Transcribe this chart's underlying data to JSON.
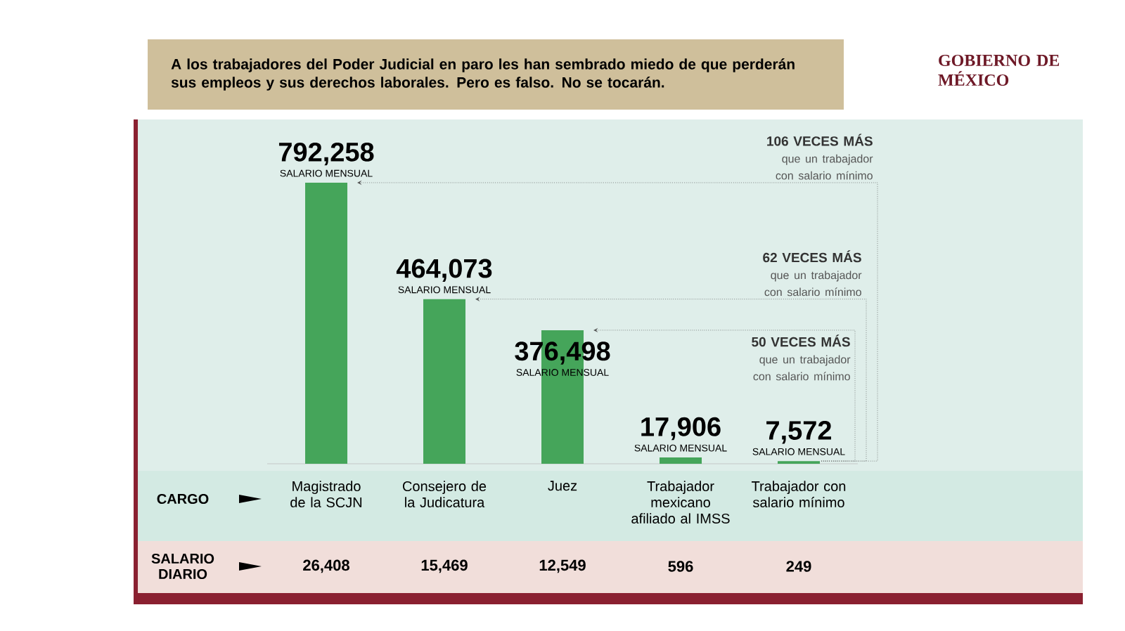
{
  "chart_data": {
    "type": "bar",
    "title": "A los trabajadores del Poder Judicial en paro les han sembrado miedo de que perderán sus empleos y sus derechos laborales. Pero es falso. No se tocarán.",
    "categories": [
      "Magistrado de la SCJN",
      "Consejero de la Judicatura",
      "Juez",
      "Trabajador mexicano afiliado al IMSS",
      "Trabajador con salario mínimo"
    ],
    "values": [
      792258,
      464073,
      376498,
      17906,
      7572
    ],
    "color": "#45a55a",
    "value_labels": [
      "792,258",
      "464,073",
      "376,498",
      "17,906",
      "7,572"
    ],
    "annotations": [
      "106 VECES MÁS",
      "que un trabajador con salario mínimo",
      "62 VECES MÁS",
      "que un trabajador con salario mínimo",
      "50 VECES MÁS",
      "que un trabajador con salario mínimo",
      "SALARIO MENSUAL",
      "SALARIO MENSUAL",
      "SALARIO MENSUAL",
      "SALARIO MENSUAL",
      "SALARIO MENSUAL",
      "CARGO",
      "SALARIO DIARIO",
      "26,408",
      "15,469",
      "12,549",
      "596",
      "249",
      "GOBIERNO DE MÉXICO"
    ]
  }
}
